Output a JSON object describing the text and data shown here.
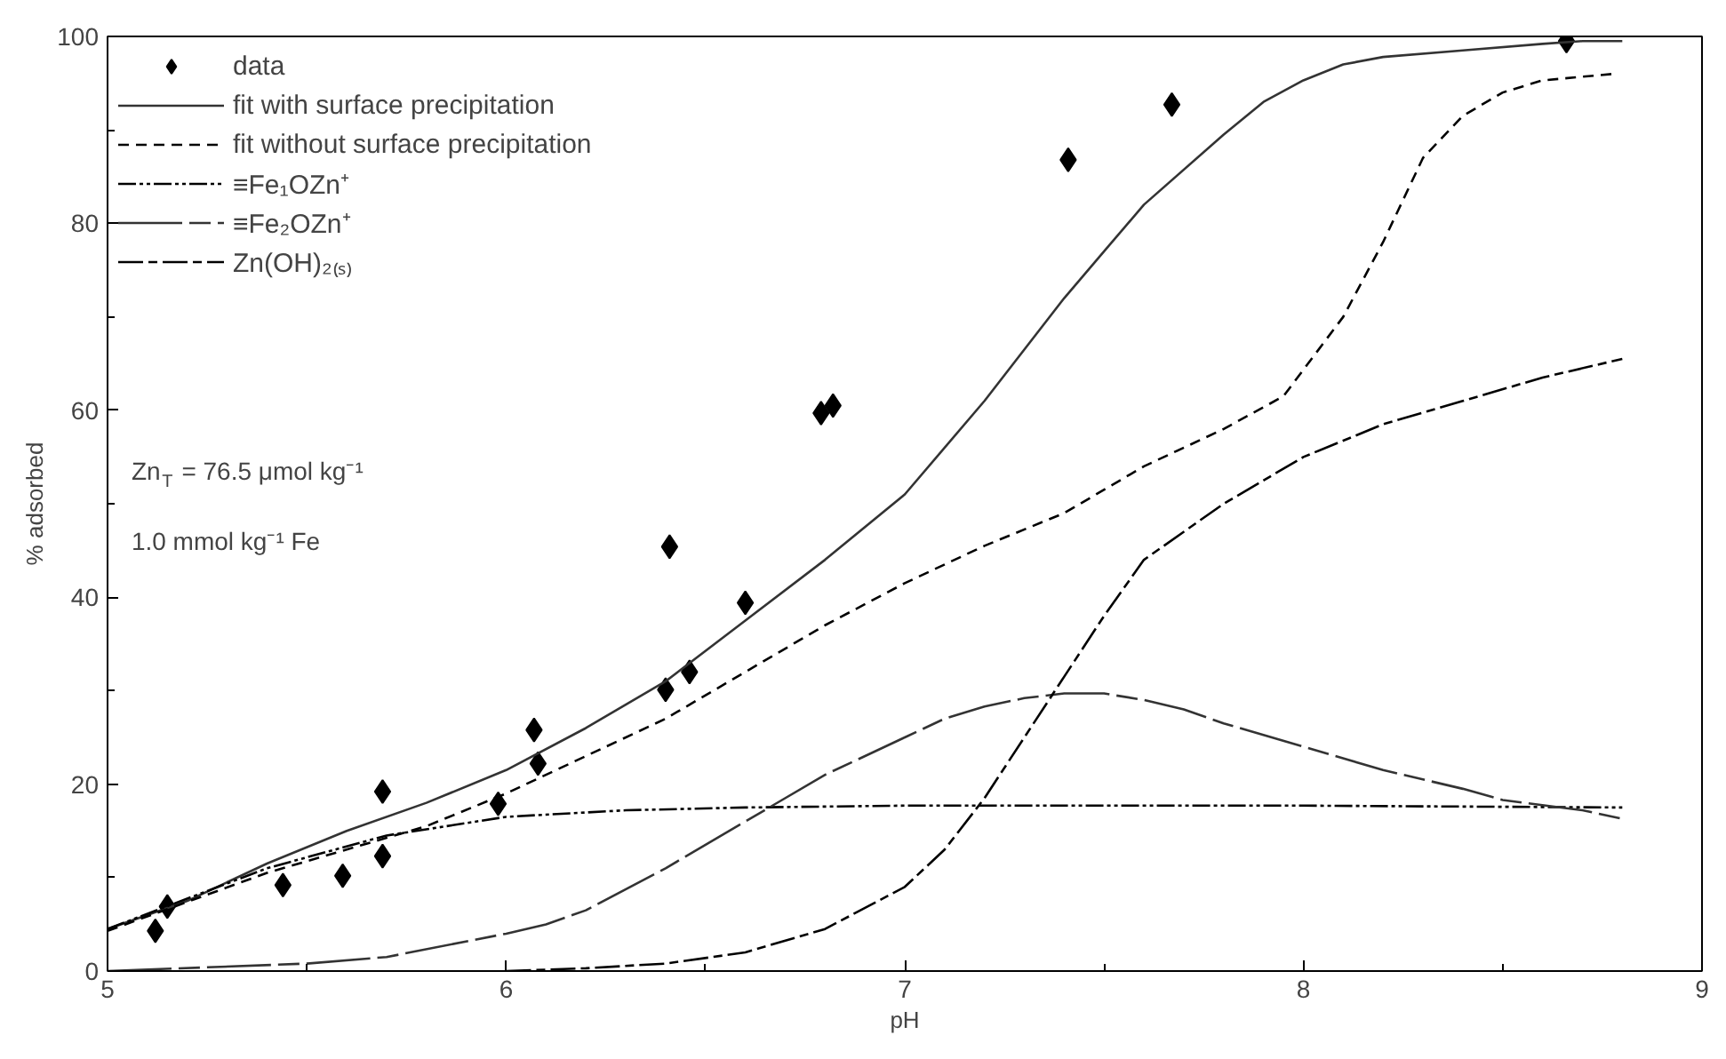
{
  "chart_data": {
    "type": "line",
    "xlabel": "pH",
    "ylabel": "% adsorbed",
    "xlim": [
      5,
      9
    ],
    "ylim": [
      0,
      100
    ],
    "xticks": [
      5,
      6,
      7,
      8,
      9
    ],
    "yticks": [
      0,
      20,
      40,
      60,
      80,
      100
    ],
    "grid": false,
    "legend": "top left",
    "annotations": [
      "Zn$_{T}$ = 76.5 μmol kg⁻¹",
      "1.0 mmol kg⁻¹ Fe"
    ],
    "series": [
      {
        "name": "data",
        "type": "scatter",
        "marker": "diamond",
        "color": "#000000",
        "x": [
          5.12,
          5.15,
          5.44,
          5.59,
          5.69,
          5.69,
          5.98,
          6.07,
          6.08,
          6.4,
          6.41,
          6.46,
          6.6,
          6.79,
          6.82,
          7.41,
          7.67,
          8.66
        ],
        "values": [
          4.3,
          6.9,
          9.2,
          10.2,
          19.2,
          12.3,
          17.9,
          25.8,
          22.2,
          30.1,
          45.4,
          32.0,
          39.4,
          59.7,
          60.5,
          86.8,
          92.7,
          99.5
        ]
      },
      {
        "name": "fit with surface precipitation",
        "line_style": "solid",
        "color": "#333333",
        "x": [
          5.0,
          5.2,
          5.4,
          5.6,
          5.8,
          6.0,
          6.2,
          6.4,
          6.6,
          6.8,
          7.0,
          7.2,
          7.4,
          7.5,
          7.6,
          7.8,
          7.9,
          8.0,
          8.1,
          8.2,
          8.4,
          8.6,
          8.7,
          8.8
        ],
        "values": [
          4.5,
          7.5,
          11.5,
          15,
          18,
          21.5,
          26,
          31,
          37.5,
          44,
          51,
          61,
          72,
          77,
          82,
          89.5,
          93,
          95.3,
          97,
          97.8,
          98.5,
          99.2,
          99.5,
          99.5
        ]
      },
      {
        "name": "fit without surface precipitation",
        "line_style": "dashed",
        "color": "#000000",
        "x": [
          5.0,
          5.4,
          5.8,
          6.0,
          6.2,
          6.4,
          6.6,
          6.8,
          7.0,
          7.2,
          7.4,
          7.6,
          7.8,
          7.95,
          8.1,
          8.2,
          8.3,
          8.4,
          8.5,
          8.6,
          8.78
        ],
        "values": [
          4.3,
          10.5,
          15.5,
          19,
          23,
          27,
          32,
          37,
          41.5,
          45.5,
          49,
          54,
          58,
          61.5,
          70,
          78,
          87,
          91.5,
          94,
          95.3,
          96
        ]
      },
      {
        "name": "≡Fe₁OZn⁺",
        "line_style": "dashdotdot",
        "color": "#000000",
        "x": [
          5.0,
          5.4,
          5.7,
          6.0,
          6.3,
          6.6,
          7.0,
          8.0,
          8.8
        ],
        "values": [
          4.5,
          11,
          14.5,
          16.5,
          17.2,
          17.5,
          17.7,
          17.7,
          17.5
        ]
      },
      {
        "name": "≡Fe₂OZn⁺",
        "line_style": "longdash",
        "color": "#333333",
        "x": [
          5.0,
          5.5,
          5.7,
          6.0,
          6.1,
          6.2,
          6.4,
          6.6,
          6.8,
          7.0,
          7.1,
          7.2,
          7.3,
          7.4,
          7.5,
          7.6,
          7.7,
          7.8,
          8.0,
          8.2,
          8.4,
          8.5,
          8.7,
          8.8
        ],
        "values": [
          0,
          0.8,
          1.5,
          4,
          5,
          6.5,
          11,
          16,
          21,
          25,
          27,
          28.3,
          29.2,
          29.7,
          29.7,
          29,
          28,
          26.5,
          24,
          21.5,
          19.5,
          18.3,
          17.2,
          16.3
        ]
      },
      {
        "name": "Zn(OH)₂₍ₛ₎",
        "line_style": "dashdot",
        "color": "#000000",
        "x": [
          6.0,
          6.2,
          6.4,
          6.6,
          6.8,
          7.0,
          7.1,
          7.2,
          7.3,
          7.4,
          7.5,
          7.6,
          7.8,
          8.0,
          8.2,
          8.4,
          8.6,
          8.8
        ],
        "values": [
          0,
          0.3,
          0.8,
          2,
          4.5,
          9,
          13,
          18.5,
          25,
          31.5,
          38,
          44,
          50,
          55,
          58.5,
          61,
          63.5,
          65.5
        ]
      }
    ]
  }
}
